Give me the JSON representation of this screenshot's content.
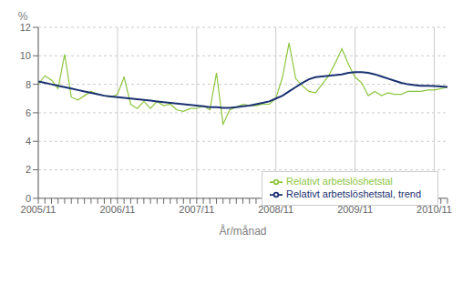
{
  "chart_data": {
    "type": "line",
    "xlabel": "År/månad",
    "ylabel": "%",
    "categories": [
      "2005/11",
      null,
      null,
      null,
      null,
      null,
      null,
      null,
      null,
      null,
      null,
      null,
      "2006/11",
      null,
      null,
      null,
      null,
      null,
      null,
      null,
      null,
      null,
      null,
      null,
      "2007/11",
      null,
      null,
      null,
      null,
      null,
      null,
      null,
      null,
      null,
      null,
      null,
      "2008/11",
      null,
      null,
      null,
      null,
      null,
      null,
      null,
      null,
      null,
      null,
      null,
      "2009/11",
      null,
      null,
      null,
      null,
      null,
      null,
      null,
      null,
      null,
      null,
      null,
      "2010/11",
      null,
      null
    ],
    "series": [
      {
        "name": "Relativt arbetslöshetstal",
        "color": "#8dc63f",
        "values": [
          8.0,
          8.6,
          8.3,
          7.7,
          10.1,
          7.1,
          6.9,
          7.2,
          7.5,
          7.3,
          7.2,
          7.1,
          7.3,
          8.5,
          6.6,
          6.3,
          6.8,
          6.3,
          6.8,
          6.5,
          6.6,
          6.2,
          6.1,
          6.3,
          6.3,
          6.5,
          6.2,
          8.8,
          5.2,
          6.2,
          6.4,
          6.6,
          6.5,
          6.5,
          6.6,
          6.6,
          7.0,
          8.5,
          10.9,
          8.4,
          7.9,
          7.5,
          7.4,
          8.0,
          8.6,
          9.5,
          10.5,
          9.4,
          8.5,
          8.1,
          7.2,
          7.5,
          7.2,
          7.4,
          7.3,
          7.3,
          7.5,
          7.5,
          7.5,
          7.6,
          7.6,
          7.7,
          7.8
        ]
      },
      {
        "name": "Relativt arbetslöshetstal, trend",
        "color": "#1a3070",
        "values": [
          8.2,
          8.1,
          8.0,
          7.9,
          7.8,
          7.7,
          7.6,
          7.5,
          7.4,
          7.3,
          7.2,
          7.15,
          7.1,
          7.05,
          7.0,
          6.95,
          6.9,
          6.85,
          6.8,
          6.75,
          6.7,
          6.65,
          6.6,
          6.55,
          6.5,
          6.45,
          6.4,
          6.4,
          6.35,
          6.35,
          6.4,
          6.45,
          6.5,
          6.6,
          6.7,
          6.8,
          7.0,
          7.2,
          7.5,
          7.8,
          8.1,
          8.35,
          8.5,
          8.55,
          8.6,
          8.65,
          8.7,
          8.8,
          8.85,
          8.85,
          8.8,
          8.7,
          8.55,
          8.4,
          8.25,
          8.1,
          8.0,
          7.95,
          7.9,
          7.9,
          7.88,
          7.85,
          7.82
        ]
      }
    ],
    "ylim": [
      0,
      12
    ],
    "yticks": [
      0,
      2,
      4,
      6,
      8,
      10,
      12
    ],
    "grid": true,
    "legend": "lower right"
  }
}
